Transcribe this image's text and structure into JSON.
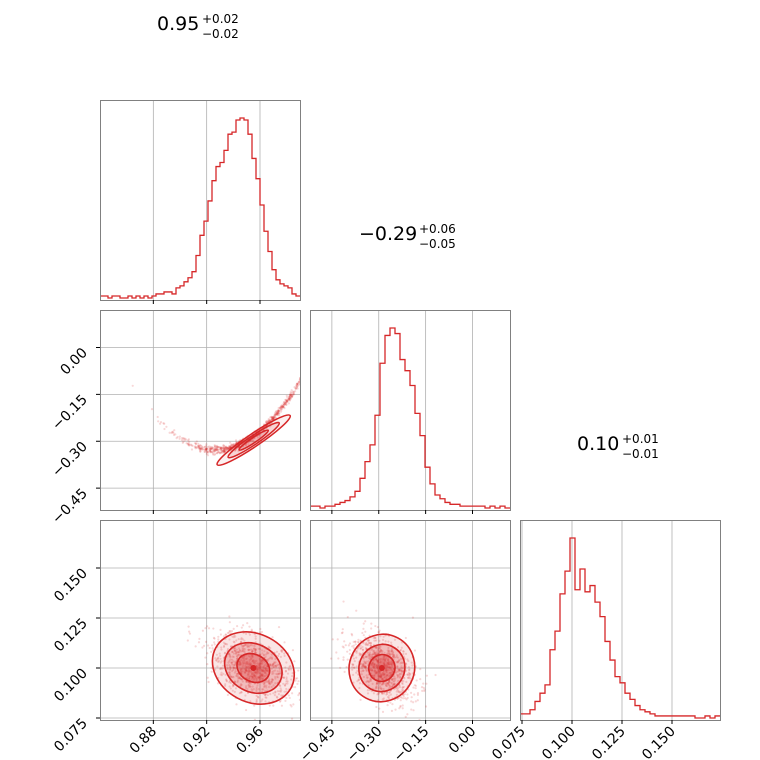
{
  "chart_data": {
    "type": "corner",
    "color": "#d62728",
    "parameters": [
      {
        "index": 0,
        "range": [
          0.84,
          0.99
        ],
        "ticks": [
          0.88,
          0.92,
          0.96
        ],
        "tick_labels": [
          "0.88",
          "0.92",
          "0.96"
        ],
        "title": {
          "median": "0.95",
          "plus": "+0.02",
          "minus": "−0.02"
        },
        "histogram": {
          "bin_edges_start": 0.84,
          "bin_width": 0.003,
          "counts": [
            0.01,
            0.01,
            0.0,
            0.01,
            0.01,
            0.0,
            0.0,
            0.01,
            0.0,
            0.01,
            0.0,
            0.01,
            0.0,
            0.01,
            0.02,
            0.02,
            0.03,
            0.03,
            0.02,
            0.05,
            0.06,
            0.08,
            0.1,
            0.13,
            0.21,
            0.31,
            0.38,
            0.48,
            0.58,
            0.65,
            0.67,
            0.73,
            0.81,
            0.82,
            0.88,
            0.89,
            0.88,
            0.81,
            0.69,
            0.59,
            0.46,
            0.33,
            0.23,
            0.14,
            0.09,
            0.07,
            0.06,
            0.05,
            0.02,
            0.01
          ]
        }
      },
      {
        "index": 1,
        "range": [
          -0.52,
          0.12
        ],
        "ticks": [
          -0.45,
          -0.3,
          -0.15,
          0.0
        ],
        "tick_labels": [
          "−0.45",
          "−0.30",
          "−0.15",
          "0.00"
        ],
        "title": {
          "median": "−0.29",
          "plus": "+0.06",
          "minus": "−0.05"
        },
        "histogram": {
          "bin_edges_start": -0.52,
          "bin_width": 0.016,
          "counts": [
            0.01,
            0.01,
            0.0,
            0.01,
            0.01,
            0.02,
            0.03,
            0.04,
            0.06,
            0.09,
            0.16,
            0.25,
            0.34,
            0.5,
            0.78,
            0.93,
            0.97,
            0.94,
            0.8,
            0.74,
            0.66,
            0.51,
            0.39,
            0.22,
            0.13,
            0.07,
            0.05,
            0.03,
            0.02,
            0.02,
            0.01,
            0.01,
            0.01,
            0.01,
            0.01,
            0.0,
            0.01,
            0.0,
            0.01,
            0.0
          ]
        }
      },
      {
        "index": 2,
        "range": [
          0.074,
          0.174
        ],
        "ticks": [
          0.075,
          0.1,
          0.125,
          0.15
        ],
        "tick_labels": [
          "0.075",
          "0.100",
          "0.125",
          "0.150"
        ],
        "title": {
          "median": "0.10",
          "plus": "+0.01",
          "minus": "−0.01"
        },
        "histogram": {
          "bin_edges_start": 0.074,
          "bin_width": 0.0025,
          "counts": [
            0.02,
            0.02,
            0.04,
            0.08,
            0.12,
            0.16,
            0.33,
            0.42,
            0.6,
            0.71,
            0.87,
            0.62,
            0.72,
            0.61,
            0.64,
            0.56,
            0.49,
            0.37,
            0.28,
            0.2,
            0.17,
            0.12,
            0.09,
            0.06,
            0.04,
            0.03,
            0.02,
            0.01,
            0.01,
            0.01,
            0.01,
            0.01,
            0.01,
            0.01,
            0.01,
            0.0,
            0.0,
            0.01,
            0.0,
            0.01
          ]
        }
      }
    ],
    "pairs": [
      {
        "x_param": 0,
        "y_param": 1,
        "center": [
          0.953,
          -0.29
        ],
        "spread": [
          0.016,
          0.046
        ],
        "correlation": 0.98,
        "curvature": 0.9
      },
      {
        "x_param": 0,
        "y_param": 2,
        "center": [
          0.955,
          0.1
        ],
        "spread": [
          0.016,
          0.0085
        ],
        "correlation": -0.45
      },
      {
        "x_param": 1,
        "y_param": 2,
        "center": [
          -0.29,
          0.1
        ],
        "spread": [
          0.052,
          0.0085
        ],
        "correlation": -0.45
      }
    ],
    "grid": true
  }
}
